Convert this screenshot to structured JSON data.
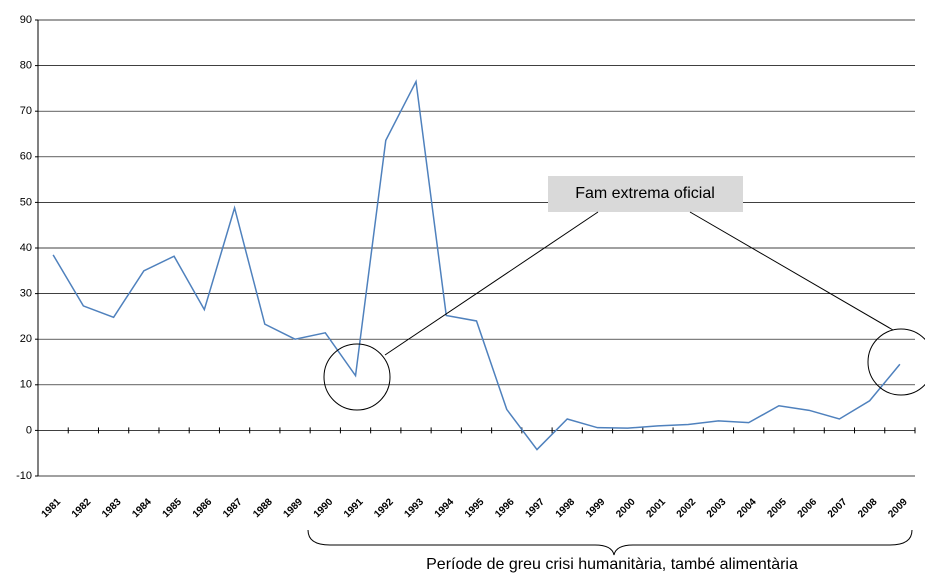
{
  "chart_data": {
    "type": "line",
    "categories": [
      "1981",
      "1982",
      "1983",
      "1984",
      "1985",
      "1986",
      "1987",
      "1988",
      "1989",
      "1990",
      "1991",
      "1992",
      "1993",
      "1994",
      "1995",
      "1996",
      "1997",
      "1998",
      "1999",
      "2000",
      "2001",
      "2002",
      "2003",
      "2004",
      "2005",
      "2006",
      "2007",
      "2008",
      "2009"
    ],
    "series": [
      {
        "name": null,
        "color": "#4f81bd",
        "values": [
          38.5,
          27.3,
          24.8,
          35,
          38.2,
          26.5,
          48.8,
          23.3,
          20,
          21.4,
          12,
          63.6,
          76.5,
          25.2,
          24,
          4.6,
          -4.2,
          2.5,
          0.6,
          0.5,
          1,
          1.3,
          2.1,
          1.7,
          5.4,
          4.4,
          2.5,
          6.5,
          14.5
        ]
      }
    ],
    "ylim": [
      -10,
      90
    ],
    "yticks": [
      -10,
      0,
      10,
      20,
      30,
      40,
      50,
      60,
      70,
      80,
      90
    ],
    "grid": true,
    "annotation": "Fam extrema oficial",
    "bracket_label": "Període de greu crisi humanitària, també alimentària"
  }
}
